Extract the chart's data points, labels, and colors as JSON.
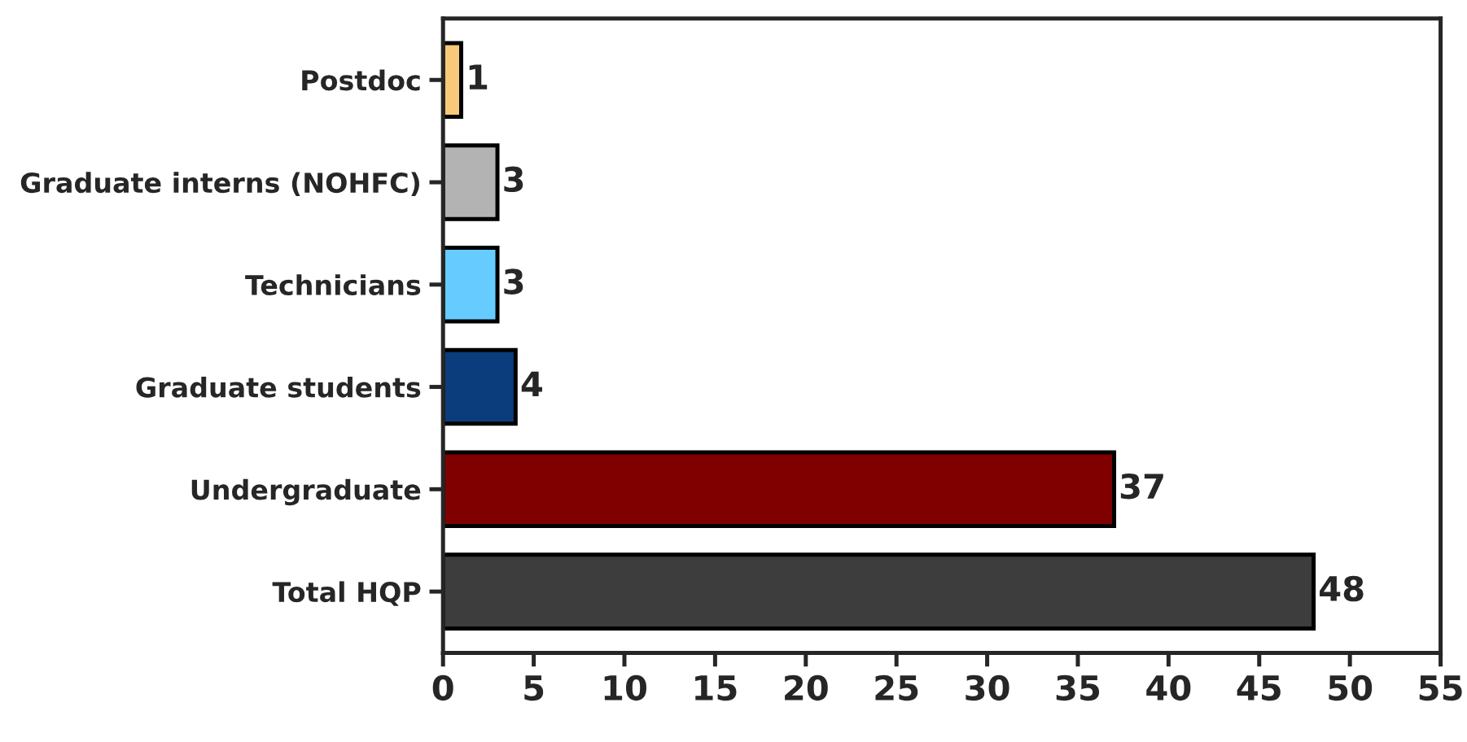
{
  "chart_data": {
    "type": "bar",
    "orientation": "horizontal",
    "categories": [
      "Postdoc",
      "Graduate interns (NOHFC)",
      "Technicians",
      "Graduate students",
      "Undergraduate",
      "Total HQP"
    ],
    "values": [
      1,
      3,
      3,
      4,
      37,
      48
    ],
    "colors": [
      "#f9c97a",
      "#b3b3b3",
      "#66ccff",
      "#0b3d7c",
      "#800000",
      "#3d3d3d"
    ],
    "xlim": [
      0,
      55
    ],
    "xticks": [
      0,
      5,
      10,
      15,
      20,
      25,
      30,
      35,
      40,
      45,
      50,
      55
    ],
    "grid": false,
    "legend": false,
    "data_labels": true
  }
}
